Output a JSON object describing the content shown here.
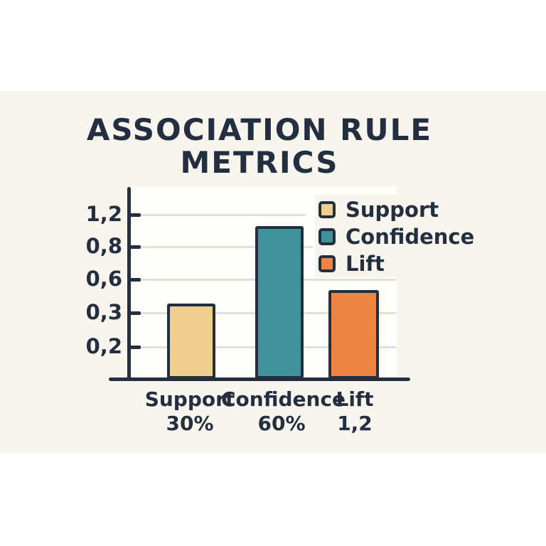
{
  "title": {
    "line1": "ASSOCIATION RULE",
    "line2": "METRICS"
  },
  "colors": {
    "ink": "#232e3f",
    "page_bg": "#ffffff",
    "paper_bg": "#f8f5ee",
    "plot_bg": "#fdfdf9",
    "grid": "#e3e0d7",
    "support": "#efcd8c",
    "confidence": "#40929a",
    "lift": "#ee8444"
  },
  "chart_data": {
    "type": "bar",
    "title": "ASSOCIATION RULE METRICS",
    "categories": [
      "Support",
      "Confidence",
      "Lift"
    ],
    "value_labels": [
      "30%",
      "60%",
      "1,2"
    ],
    "values": [
      0.3,
      0.6,
      1.2
    ],
    "drawn_bar_fracs": [
      0.381,
      0.777,
      0.452
    ],
    "bar_colors": [
      "#efcd8c",
      "#40929a",
      "#ee8444"
    ],
    "yticks": [
      "1,2",
      "0,8",
      "0,6",
      "0,3",
      "0,2"
    ],
    "grid": "horizontal",
    "legend_position": "upper right",
    "xlabel": "",
    "ylabel": "",
    "legend": [
      {
        "label": "Support",
        "color": "#efcd8c"
      },
      {
        "label": "Confidence",
        "color": "#40929a"
      },
      {
        "label": "Lift",
        "color": "#ee8444"
      }
    ]
  }
}
